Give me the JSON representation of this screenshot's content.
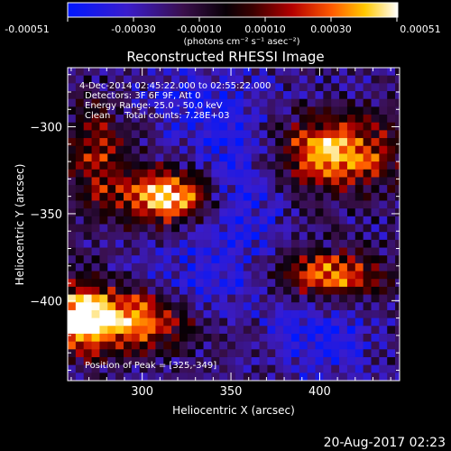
{
  "colorbar": {
    "tick_labels": [
      "-0.00051",
      "-0.00030",
      "-0.00010",
      "0.00010",
      "0.00030",
      "0.00051"
    ],
    "unit_label": "(photons cm⁻² s⁻¹ asec⁻²)"
  },
  "plot": {
    "title": "Reconstructed RHESSI Image",
    "info_lines": [
      "4-Dec-2014 02:45:22.000 to 02:55:22.000",
      "Detectors: 3F 6F 9F, Att 0",
      "Energy Range: 25.0 - 50.0 keV",
      "Clean     Total counts: 7.28E+03"
    ],
    "peak_text": "Position of Peak = [325,-349]"
  },
  "footer": {
    "timestamp": "20-Aug-2017 02:23"
  },
  "chart_data": {
    "type": "heatmap",
    "title": "Reconstructed RHESSI Image",
    "xlabel": "Heliocentric X (arcsec)",
    "ylabel": "Heliocentric Y (arcsec)",
    "xlim": [
      258,
      445
    ],
    "ylim": [
      -446,
      -266
    ],
    "x_ticks": [
      300,
      350,
      400
    ],
    "y_ticks": [
      -300,
      -350,
      -400
    ],
    "color_range": [
      -0.00051,
      0.00051
    ],
    "colormap": "blue-purple-black-red-orange-yellow-white",
    "peak": {
      "x": 325,
      "y": -349
    },
    "sources": [
      {
        "x": 315,
        "y": -340,
        "amp": 1.0,
        "sx": 18,
        "sy": 11
      },
      {
        "x": 408,
        "y": -315,
        "amp": 0.85,
        "sx": 24,
        "sy": 14
      },
      {
        "x": 405,
        "y": -386,
        "amp": 0.75,
        "sx": 20,
        "sy": 10
      },
      {
        "x": 290,
        "y": -410,
        "amp": 0.85,
        "sx": 25,
        "sy": 12
      },
      {
        "x": 275,
        "y": -318,
        "amp": 0.5,
        "sx": 12,
        "sy": 20
      },
      {
        "x": 265,
        "y": -410,
        "amp": 0.6,
        "sx": 10,
        "sy": 15
      }
    ],
    "troughs": [
      {
        "x": 350,
        "y": -330,
        "amp": 0.55,
        "sx": 22,
        "sy": 35
      },
      {
        "x": 330,
        "y": -390,
        "amp": 0.4,
        "sx": 25,
        "sy": 15
      },
      {
        "x": 400,
        "y": -420,
        "amp": 0.55,
        "sx": 18,
        "sy": 18
      },
      {
        "x": 325,
        "y": -285,
        "amp": 0.35,
        "sx": 20,
        "sy": 12
      }
    ]
  }
}
